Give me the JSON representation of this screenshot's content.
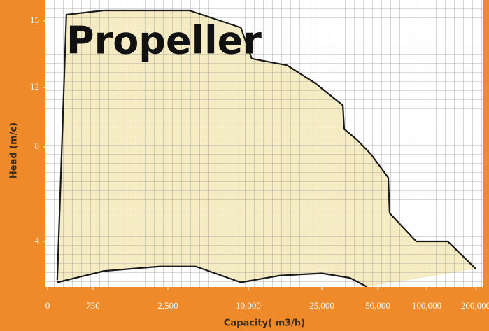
{
  "chart_data": {
    "type": "area",
    "title": "Propeller",
    "x_label": "Capacity( m3/h)",
    "y_label": "Head (m/c)",
    "xlim": [
      0,
      200000
    ],
    "xticks": [
      0,
      {
        "value": 750,
        "label": "750"
      },
      {
        "value": 2500,
        "label": "2,500"
      },
      {
        "value": 10000,
        "label": "10,000"
      },
      {
        "value": 25000,
        "label": "25,000"
      },
      {
        "value": 50000,
        "label": "50,000"
      },
      {
        "value": 100000,
        "label": "100,000"
      },
      {
        "value": 200000,
        "label": "200,000"
      }
    ],
    "ylim": [
      2,
      16
    ],
    "yticks": [
      4,
      8,
      12,
      15
    ],
    "fill_color": "#f6ecc4",
    "series": [
      {
        "color": "#1a1a1a",
        "x": [
          160,
          310,
          1000,
          4500,
          9300,
          10700,
          17900,
          23600,
          34400,
          35000,
          40600,
          46900,
          60700,
          62100,
          89300,
          142900,
          200000
        ],
        "values": [
          2.3,
          15.3,
          15.5,
          15.5,
          14.7,
          13.3,
          13.0,
          12.2,
          10.8,
          9.2,
          8.5,
          7.7,
          6.7,
          5.2,
          4,
          4,
          2.8
        ]
      },
      {
        "color": "#1a1a1a",
        "x": [
          160,
          1000,
          2300,
          5100,
          9300,
          16400,
          25000,
          37500,
          45300
        ],
        "values": [
          2.2,
          2.7,
          2.9,
          2.9,
          2.2,
          2.5,
          2.6,
          2.4,
          2.0
        ]
      }
    ]
  }
}
